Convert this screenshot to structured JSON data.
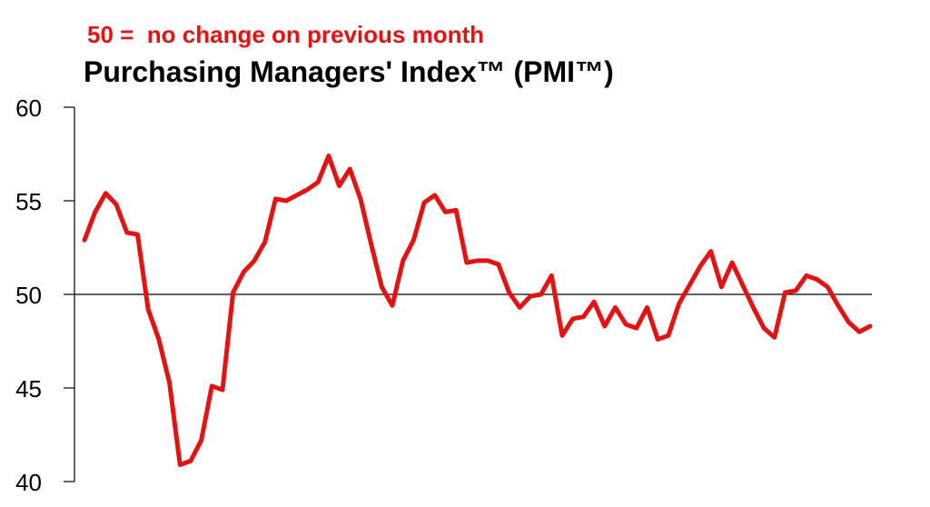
{
  "chart_data": {
    "type": "line",
    "subtitle": "50 =  no change on previous month",
    "title": "Purchasing Managers' Index™ (PMI™)",
    "xlabel": "",
    "ylabel": "",
    "ylim": [
      40,
      60
    ],
    "yticks": [
      "60",
      "55",
      "50",
      "45",
      "40"
    ],
    "reference_line": 50,
    "grid": false,
    "colors": {
      "series": "#e31313",
      "reference_line": "#000000",
      "subtitle": "#e31313",
      "title": "#000000"
    },
    "series": [
      {
        "values": [
          52.9,
          54.4,
          55.4,
          54.8,
          53.3,
          53.2,
          49.2,
          47.6,
          45.3,
          40.9,
          41.1,
          42.2,
          45.1,
          44.9,
          50.1,
          51.2,
          51.8,
          52.8,
          55.1,
          55.0,
          55.3,
          55.6,
          56.0,
          57.4,
          55.8,
          56.7,
          55.1,
          52.7,
          50.4,
          49.4,
          51.8,
          52.9,
          54.9,
          55.3,
          54.4,
          54.5,
          51.7,
          51.8,
          51.8,
          51.6,
          50.1,
          49.3,
          49.9,
          50.0,
          51.0,
          47.8,
          48.7,
          48.8,
          49.6,
          48.3,
          49.3,
          48.4,
          48.2,
          49.3,
          47.6,
          47.8,
          49.5,
          50.5,
          51.5,
          52.3,
          50.4,
          51.7,
          50.5,
          49.3,
          48.2,
          47.7,
          50.1,
          50.2,
          51.0,
          50.8,
          50.4,
          49.4,
          48.5,
          48.0,
          48.3
        ]
      }
    ]
  }
}
